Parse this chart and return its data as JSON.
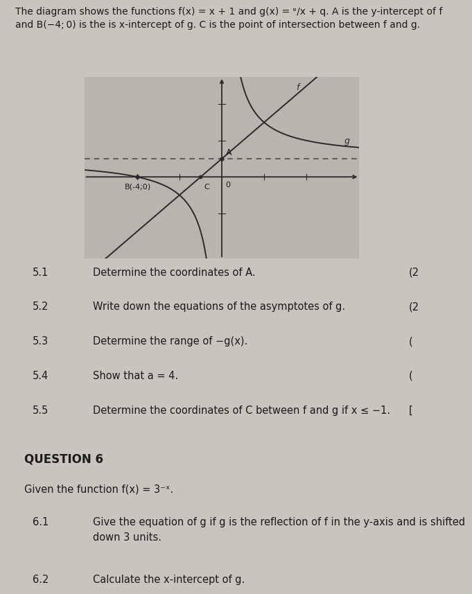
{
  "bg_color": "#c8c4be",
  "graph_bg": "#b8b4ae",
  "title_line1": "The diagram shows the functions f(x) = x + 1 and g(x) = ᵄ/x + q. A is the y-intercept of f",
  "title_line2": "and B(−4; 0) is the is x-intercept of g. C is the point of intersection between f and g.",
  "graph_xlim": [
    -6.5,
    6.5
  ],
  "graph_ylim": [
    -4.5,
    5.5
  ],
  "questions": [
    {
      "num": "5.1",
      "text": "Determine the coordinates of A.",
      "marks": "(2"
    },
    {
      "num": "5.2",
      "text": "Write down the equations of the asymptotes of g.",
      "marks": "(2"
    },
    {
      "num": "5.3",
      "text": "Determine the range of −g(x).",
      "marks": "("
    },
    {
      "num": "5.4",
      "text": "Show that a = 4.",
      "marks": "("
    },
    {
      "num": "5.5",
      "text": "Determine the coordinates of C between f and g if x ≤ −1.",
      "marks": "["
    }
  ],
  "q6_header": "QUESTION 6",
  "q6_intro": "Given the function f(x) = 3⁻ˣ.",
  "q6_questions": [
    {
      "num": "6.1",
      "text": "Give the equation of g if g is the reflection of f in the y-axis and is shifted\ndown 3 units."
    },
    {
      "num": "6.2",
      "text": "Calculate the x-intercept of g."
    }
  ],
  "line_color": "#2a2a2a",
  "axis_color": "#2a2a2a",
  "dashed_color": "#444444",
  "text_color": "#1a1a1a",
  "q6_text_color": "#1a1a1a"
}
